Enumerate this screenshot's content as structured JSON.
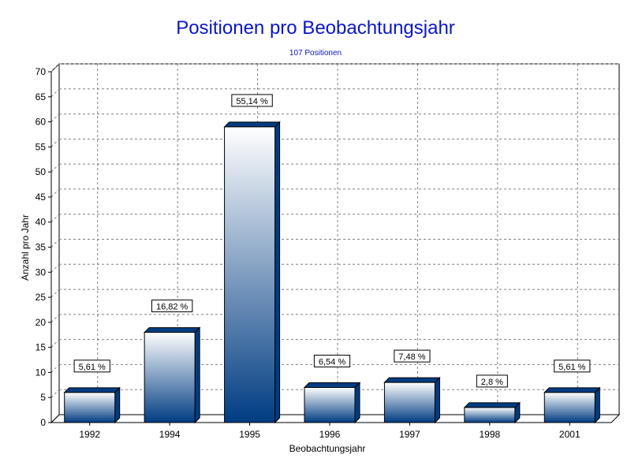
{
  "chart_data": {
    "type": "bar",
    "title": "Positionen pro Beobachtungsjahr",
    "subtitle": "107 Positionen",
    "xlabel": "Beobachtungsjahr",
    "ylabel": "Anzahl pro Jahr",
    "ylim": [
      0,
      70
    ],
    "ytick_step": 5,
    "grid": true,
    "categories": [
      "1992",
      "1994",
      "1995",
      "1996",
      "1997",
      "1998",
      "2001"
    ],
    "values": [
      6,
      18,
      59,
      7,
      8,
      3,
      6
    ],
    "data_labels": [
      "5,61 %",
      "16,82 %",
      "55,14 %",
      "6,54 %",
      "7,48 %",
      "2,8 %",
      "5,61 %"
    ],
    "colors": {
      "bar_top": "#ffffff",
      "bar_bottom": "#003c82",
      "title": "#0a16c8",
      "grid": "#808080"
    }
  }
}
